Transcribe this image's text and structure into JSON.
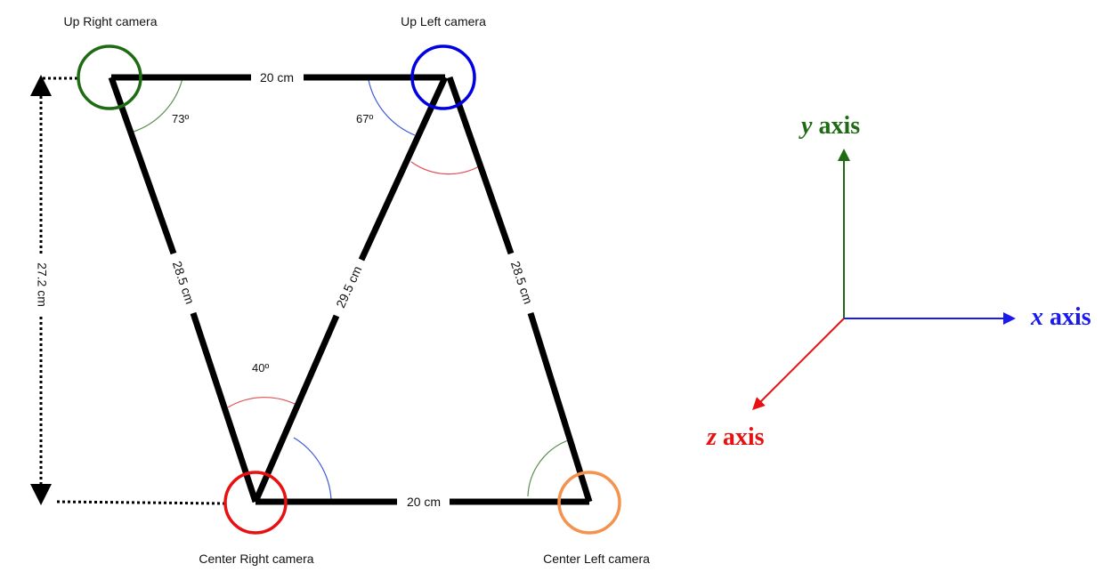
{
  "cameras": {
    "up_right": {
      "label": "Up Right camera",
      "color": "#1f6b14"
    },
    "up_left": {
      "label": "Up Left camera",
      "color": "#0000e0"
    },
    "center_right": {
      "label": "Center Right camera",
      "color": "#e81010"
    },
    "center_left": {
      "label": "Center Left camera",
      "color": "#f5924e"
    }
  },
  "dimensions": {
    "top_edge": "20 cm",
    "bottom_edge": "20 cm",
    "left_edge": "28.5 cm",
    "diagonal": "29.5 cm",
    "right_edge": "28.5 cm",
    "height": "27.2 cm"
  },
  "angles": {
    "up_right": "73º",
    "up_left": "67º",
    "center_right": "40º"
  },
  "axes": {
    "y": {
      "var": "y",
      "word": " axis",
      "color": "#1f6b14"
    },
    "x": {
      "var": "x",
      "word": " axis",
      "color": "#1a1aee"
    },
    "z": {
      "var": "z",
      "word": " axis",
      "color": "#e81010"
    }
  }
}
